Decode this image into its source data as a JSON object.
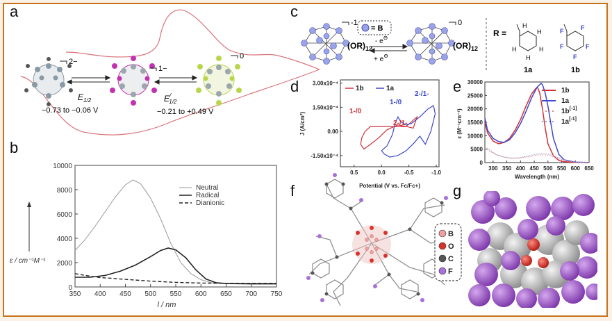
{
  "panels": {
    "a": {
      "letter": "a",
      "charge_left": "2−",
      "charge_mid": "1−",
      "charge_right": "0",
      "e_left_label": "E",
      "e_left_sub": "1/2",
      "e_left_range": "−0.73 to −0.06 V",
      "e_right_label": "E",
      "e_right_sub": "1/2",
      "e_right_sup": "/",
      "e_right_range": "−0.21 to +0.49 V",
      "colors": {
        "cv": "#d9737b",
        "left_cluster": "#8a9aa4",
        "mid_cluster": "#c133b0",
        "right_cluster": "#b8d64a"
      }
    },
    "b": {
      "letter": "b",
      "ylabel": "ε / cm⁻¹M⁻¹",
      "xlabel": "l / nm",
      "legend": [
        "Neutral",
        "Radical",
        "Dianionic"
      ]
    },
    "c": {
      "letter": "c",
      "charge_left": "-1",
      "charge_right": "0",
      "b_key": "= B",
      "or_left": "(OR)",
      "or_right": "(OR)",
      "or_sub": "12",
      "forward": "- e",
      "backward": "+ e",
      "electron_sup": "⊖",
      "r_label": "R =",
      "mol_1a": "1a",
      "mol_1b": "1b",
      "h_atoms": [
        "H",
        "H",
        "H",
        "H",
        "H"
      ],
      "f_atoms": [
        "F",
        "F",
        "F",
        "F",
        "F"
      ]
    },
    "d": {
      "letter": "d",
      "legend": [
        "1b",
        "1a"
      ],
      "ylabel": "J (A/cm²)",
      "xlabel": "Potential (V vs. Fc/Fc+)",
      "annotations": [
        "1-/0",
        "1-/0",
        "2-/1-",
        "2-/1-"
      ],
      "colors": {
        "1b": "#d0313a",
        "1a": "#3d47c8"
      }
    },
    "e": {
      "letter": "e",
      "legend": [
        "1b",
        "1a",
        "1b",
        "1a"
      ],
      "legend_sup": "[-1]",
      "ylabel": "ε (M⁻¹cm⁻¹)",
      "xlabel": "Wavelength (nm)"
    },
    "f": {
      "letter": "f",
      "atom_legend": [
        "B",
        "O",
        "C",
        "F"
      ],
      "atom_colors": [
        "#f0a0a0",
        "#d8322c",
        "#555555",
        "#a870d8"
      ]
    },
    "g": {
      "letter": "g",
      "colors": {
        "F": "#9a52c4",
        "C": "#c8c8c8",
        "O": "#d62a1e"
      }
    }
  },
  "chart_data": [
    {
      "id": "b",
      "type": "line",
      "xlabel": "l / nm",
      "ylabel": "ε / cm⁻¹M⁻¹",
      "xlim": [
        350,
        750
      ],
      "ylim": [
        0,
        10000
      ],
      "xticks": [
        350,
        400,
        450,
        500,
        550,
        600,
        650,
        700,
        750
      ],
      "yticks": [
        0,
        2000,
        4000,
        6000,
        8000,
        10000
      ],
      "series": [
        {
          "name": "Neutral",
          "style": "thin-gray",
          "x": [
            350,
            370,
            390,
            410,
            430,
            450,
            465,
            480,
            500,
            520,
            540,
            560,
            580,
            600,
            620,
            640,
            660,
            700,
            750
          ],
          "y": [
            3000,
            3900,
            5000,
            6200,
            7400,
            8400,
            8800,
            8500,
            7300,
            5600,
            3600,
            2000,
            1100,
            600,
            350,
            300,
            300,
            300,
            300
          ]
        },
        {
          "name": "Radical",
          "style": "solid-black",
          "x": [
            350,
            380,
            410,
            440,
            470,
            500,
            520,
            535,
            550,
            570,
            590,
            610,
            630,
            650,
            700,
            750
          ],
          "y": [
            800,
            800,
            950,
            1300,
            1800,
            2500,
            3000,
            3200,
            3050,
            2400,
            1400,
            650,
            350,
            280,
            250,
            250
          ]
        },
        {
          "name": "Dianionic",
          "style": "dashed",
          "x": [
            350,
            370,
            400,
            450,
            500,
            550,
            600,
            650,
            700,
            750
          ],
          "y": [
            1100,
            950,
            780,
            620,
            480,
            380,
            320,
            300,
            300,
            300
          ]
        }
      ]
    },
    {
      "id": "d",
      "type": "line",
      "xlabel": "Potential (V vs. Fc/Fc+)",
      "ylabel": "J (A/cm²)",
      "xlim": [
        0.75,
        -1.05
      ],
      "ylim": [
        -0.00022,
        0.00032
      ],
      "xticks": [
        0.5,
        0.0,
        -0.5,
        -1.0
      ],
      "xtick_labels": [
        "0.5",
        "0.0",
        "-0.5",
        "-1.0"
      ],
      "yticks": [
        -0.00015,
        0.0,
        0.00015,
        0.0003
      ],
      "ytick_labels": [
        "-1.50x10⁻⁴",
        "0.00",
        "1.50x10⁻⁴",
        "3.00x10⁻⁴"
      ],
      "series": [
        {
          "name": "1b",
          "x": [
            -0.45,
            -0.25,
            0.0,
            0.2,
            0.3,
            0.36,
            0.38,
            0.32,
            0.2,
            0.05,
            -0.1,
            -0.3,
            -0.45,
            -0.58,
            -0.65,
            -0.58,
            -0.45
          ],
          "y": [
            3e-05,
            3e-05,
            3e-05,
            3e-05,
            0.0,
            -4e-05,
            -8e-05,
            -0.00011,
            -8e-05,
            -4e-05,
            1e-05,
            4e-05,
            3e-05,
            2e-05,
            9e-05,
            7e-05,
            3e-05
          ]
        },
        {
          "name": "1a",
          "x": [
            0.0,
            -0.1,
            -0.2,
            -0.25,
            -0.3,
            -0.35,
            -0.45,
            -0.55,
            -0.7,
            -0.85,
            -0.95,
            -0.98,
            -0.9,
            -0.8,
            -0.7,
            -0.6,
            -0.45,
            -0.3,
            -0.15,
            -0.05,
            0.0
          ],
          "y": [
            -0.00012,
            -9e-05,
            -2e-05,
            5e-05,
            9e-05,
            6e-05,
            4e-05,
            5e-05,
            9e-05,
            0.00014,
            0.00016,
            0.00011,
            0.0,
            -8e-05,
            -3e-05,
            -7e-05,
            -0.00012,
            -0.00015,
            -0.00016,
            -0.00014,
            -0.00012
          ]
        }
      ]
    },
    {
      "id": "e",
      "type": "line",
      "xlabel": "Wavelength (nm)",
      "ylabel": "ε (M⁻¹cm⁻¹)",
      "xlim": [
        270,
        650
      ],
      "ylim": [
        0,
        30000
      ],
      "xticks": [
        300,
        350,
        400,
        450,
        500,
        550,
        600,
        650
      ],
      "yticks": [
        0,
        5000,
        10000,
        15000,
        20000,
        25000,
        30000
      ],
      "series": [
        {
          "name": "1b",
          "style": "solid",
          "color": "#d0313a",
          "x": [
            270,
            280,
            300,
            320,
            340,
            360,
            380,
            400,
            420,
            440,
            455,
            462,
            470,
            480,
            490,
            500,
            520,
            540,
            560,
            600,
            650
          ],
          "y": [
            15000,
            11000,
            8000,
            7000,
            7500,
            9000,
            12000,
            16000,
            21000,
            25500,
            27500,
            28000,
            26000,
            20000,
            13000,
            7000,
            2500,
            800,
            300,
            100,
            0
          ]
        },
        {
          "name": "1a",
          "style": "solid",
          "color": "#3d47c8",
          "x": [
            270,
            280,
            300,
            320,
            340,
            360,
            380,
            400,
            420,
            440,
            460,
            475,
            480,
            490,
            500,
            510,
            520,
            540,
            560,
            600,
            650
          ],
          "y": [
            16500,
            12000,
            9000,
            7800,
            7500,
            8500,
            11000,
            14500,
            19000,
            24000,
            28000,
            29500,
            29000,
            26000,
            21000,
            15000,
            9000,
            3000,
            1000,
            200,
            0
          ]
        },
        {
          "name": "1b[-1]",
          "style": "dotted",
          "color": "#e68888",
          "x": [
            270,
            290,
            310,
            340,
            370,
            400,
            430,
            460,
            490,
            510,
            540,
            570,
            600,
            650
          ],
          "y": [
            6000,
            4500,
            3000,
            2000,
            1500,
            1700,
            2200,
            2800,
            2900,
            2400,
            1400,
            600,
            200,
            0
          ]
        },
        {
          "name": "1a[-1]",
          "style": "dotted",
          "color": "#9a9fd8",
          "x": [
            270,
            290,
            310,
            340,
            370,
            400,
            430,
            460,
            490,
            510,
            540,
            570,
            600,
            650
          ],
          "y": [
            5200,
            4200,
            3000,
            2100,
            1700,
            1900,
            2500,
            3200,
            3400,
            2900,
            1700,
            700,
            250,
            0
          ]
        }
      ]
    }
  ]
}
